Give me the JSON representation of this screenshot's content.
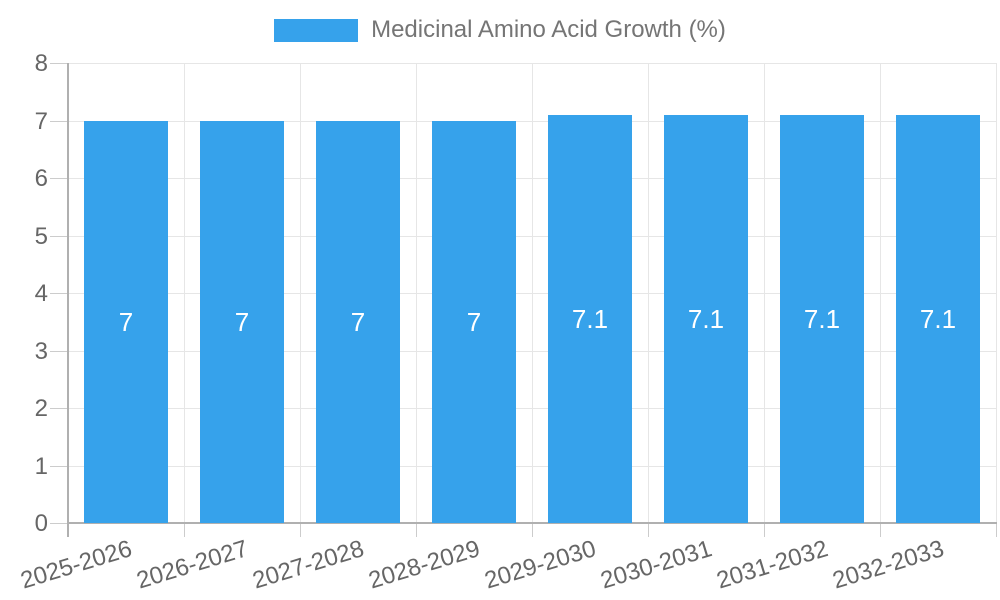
{
  "legend": {
    "label": "Medicinal Amino Acid Growth (%)"
  },
  "colors": {
    "bar": "#36A2EB",
    "grid": "#e6e6e6",
    "tick": "#cccccc",
    "axis": "#b0b0b0",
    "axis_label": "#666666",
    "legend_text": "#757575",
    "bar_label": "#ffffff",
    "background": "#ffffff"
  },
  "chart_data": {
    "type": "bar",
    "title": "Medicinal Amino Acid Growth (%)",
    "categories": [
      "2025-2026",
      "2026-2027",
      "2027-2028",
      "2028-2029",
      "2029-2030",
      "2030-2031",
      "2031-2032",
      "2032-2033"
    ],
    "values": [
      7,
      7,
      7,
      7,
      7.1,
      7.1,
      7.1,
      7.1
    ],
    "bar_labels": [
      "7",
      "7",
      "7",
      "7",
      "7.1",
      "7.1",
      "7.1",
      "7.1"
    ],
    "xlabel": "",
    "ylabel": "",
    "ylim": [
      0,
      8
    ],
    "yticks": [
      0,
      1,
      2,
      3,
      4,
      5,
      6,
      7,
      8
    ],
    "grid": true,
    "legend_position": "top",
    "series_name": "Medicinal Amino Acid Growth (%)"
  }
}
